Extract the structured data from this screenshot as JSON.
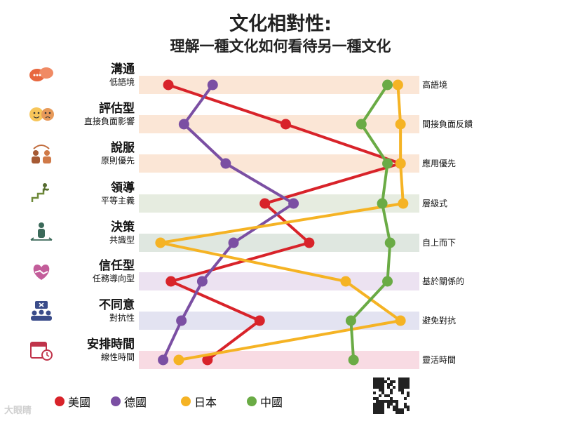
{
  "title": "文化相對性:",
  "subtitle": "理解一種文化如何看待另一種文化",
  "chart_data": {
    "type": "line",
    "scale": "0 = left pole, 100 = right pole",
    "dimensions": [
      {
        "name": "溝通",
        "low": "低語境",
        "high": "高語境",
        "band_color": "#fbe6d6"
      },
      {
        "name": "評估型",
        "low": "直接負面影響",
        "high": "間接負面反饋",
        "band_color": "#fbe6d6"
      },
      {
        "name": "說服",
        "low": "原則優先",
        "high": "應用優先",
        "band_color": "#fbe6d6"
      },
      {
        "name": "領導",
        "low": "平等主義",
        "high": "層級式",
        "band_color": "#e6ece0"
      },
      {
        "name": "決策",
        "low": "共識型",
        "high": "自上而下",
        "band_color": "#dfe7e0"
      },
      {
        "name": "信任型",
        "low": "任務導向型",
        "high": "基於關係的",
        "band_color": "#ece2f1"
      },
      {
        "name": "不同意",
        "low": "對抗性",
        "high": "避免對抗",
        "band_color": "#e3e3f1"
      },
      {
        "name": "安排時間",
        "low": "線性時間",
        "high": "靈活時間",
        "band_color": "#f8dbe3"
      }
    ],
    "series": [
      {
        "name": "美國",
        "color": "#d8232a",
        "values": [
          7,
          52,
          96,
          44,
          61,
          8,
          42,
          22
        ]
      },
      {
        "name": "德國",
        "color": "#7b4fa3",
        "values": [
          24,
          13,
          29,
          55,
          32,
          20,
          12,
          5
        ]
      },
      {
        "name": "日本",
        "color": "#f5b324",
        "values": [
          95,
          96,
          96,
          97,
          4,
          75,
          96,
          11
        ]
      },
      {
        "name": "中國",
        "color": "#6aab45",
        "values": [
          91,
          81,
          91,
          89,
          92,
          91,
          77,
          78
        ]
      }
    ]
  },
  "legend": [
    {
      "label": "美國",
      "color": "#d8232a"
    },
    {
      "label": "德國",
      "color": "#7b4fa3"
    },
    {
      "label": "日本",
      "color": "#f5b324"
    },
    {
      "label": "中國",
      "color": "#6aab45"
    }
  ],
  "watermark": "大眼睛",
  "icons": [
    "chat-bubbles-icon",
    "faces-icon",
    "people-exchange-icon",
    "stairs-climber-icon",
    "person-arrows-icon",
    "heart-handshake-icon",
    "group-dispute-icon",
    "calendar-clock-icon"
  ]
}
